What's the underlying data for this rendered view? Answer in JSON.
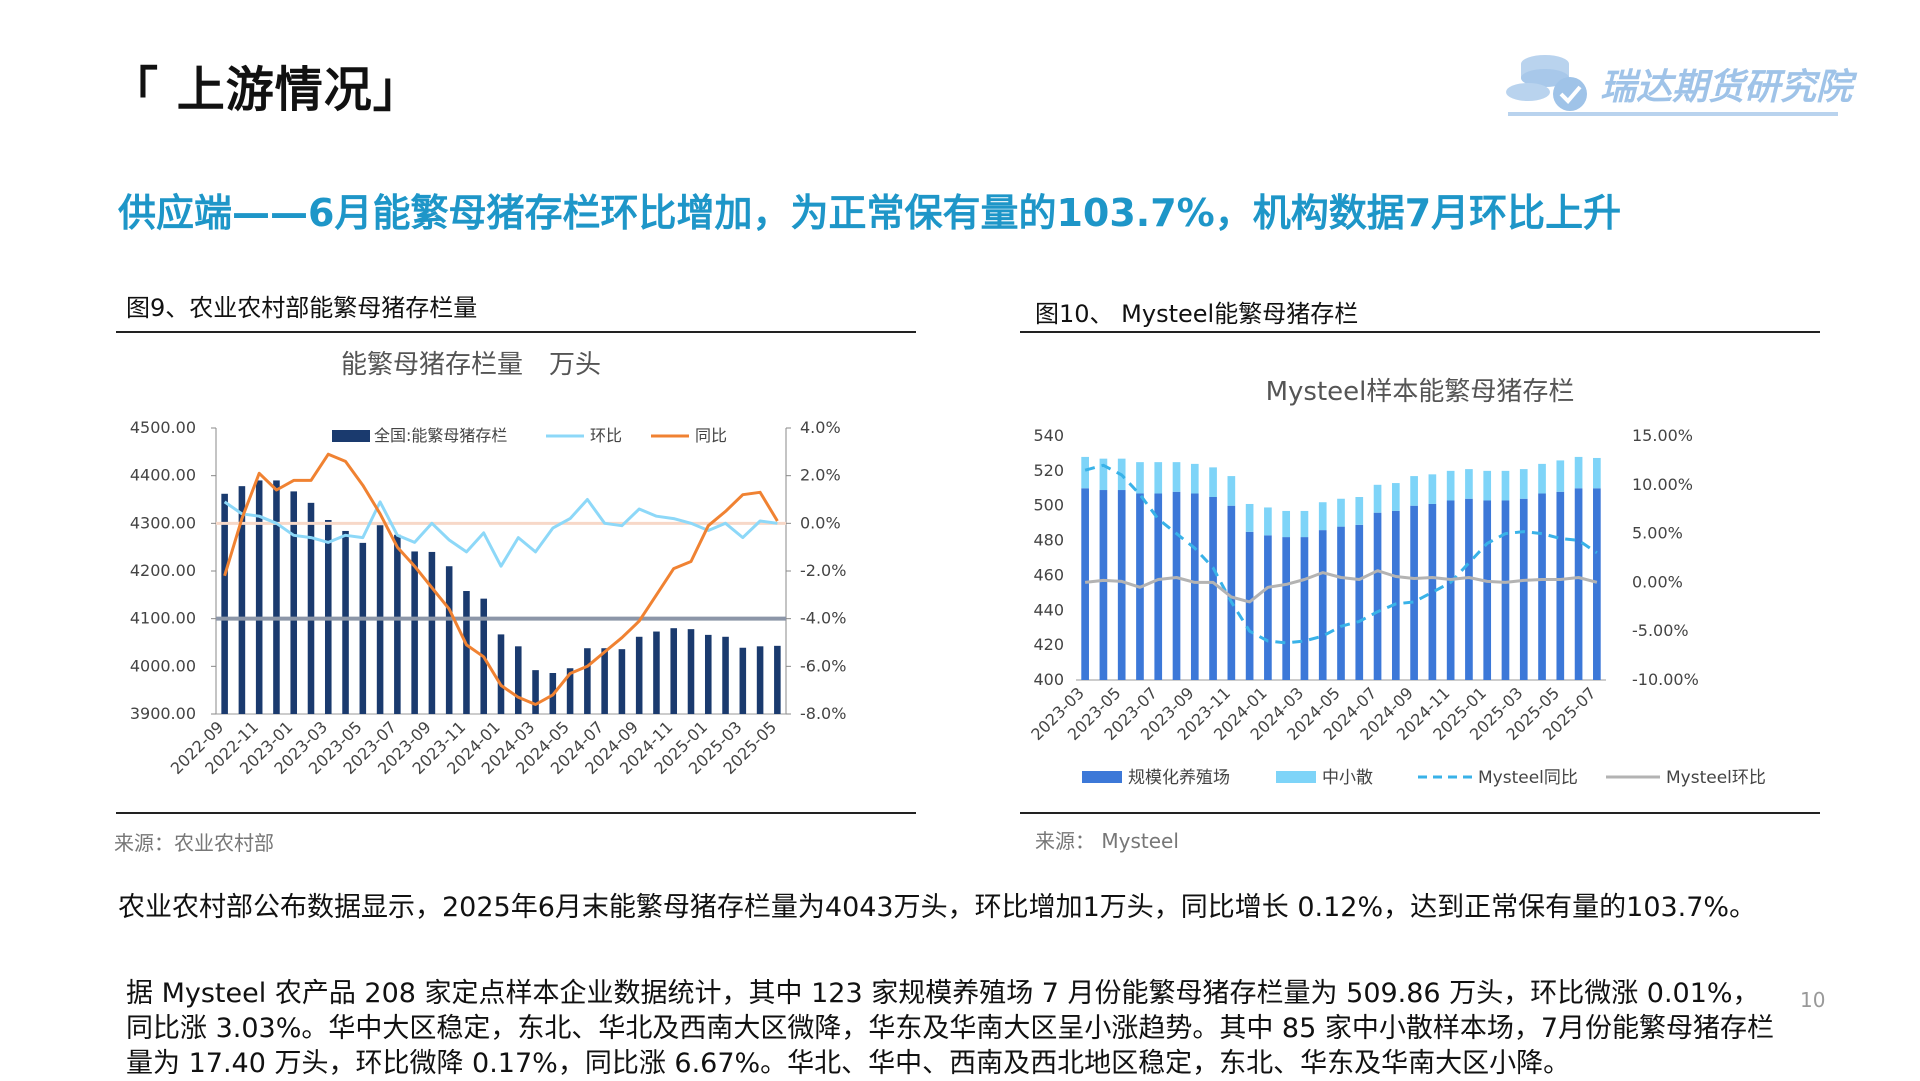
{
  "slide": {
    "section_title": "「 上游情况」",
    "logo_text": "瑞达期货研究院",
    "headline": "供应端——6月能繁母猪存栏环比增加，为正常保有量的103.7%，机构数据7月环比上升",
    "page_number": "10",
    "colors": {
      "headline": "#1e96c8",
      "logo": "#9fc3e8"
    }
  },
  "figures": [
    {
      "caption": "图9、农业农村部能繁母猪存栏量",
      "source": "来源：农业农村部"
    },
    {
      "caption": "图10、 Mysteel能繁母猪存栏",
      "source": "来源： Mysteel"
    }
  ],
  "paragraphs": [
    "农业农村部公布数据显示，2025年6月末能繁母猪存栏量为4043万头，环比增加1万头，同比增长 0.12%，达到正常保有量的103.7%。",
    "据 Mysteel 农产品 208 家定点样本企业数据统计，其中 123 家规模养殖场 7 月份能繁母猪存栏量为 509.86 万头，环比微涨 0.01%，同比涨 3.03%。华中大区稳定，东北、华北及西南大区微降，华东及华南大区呈小涨趋势。其中 85 家中小散样本场，7月份能繁母猪存栏量为 17.40 万头，环比微降 0.17%，同比涨 6.67%。华北、华中、西南及西北地区稳定，东北、华东及华南大区小降。"
  ],
  "chart_data": [
    {
      "type": "bar",
      "title": "能繁母猪存栏量　万头",
      "legend_position": "top",
      "xticks": [
        "2022-09",
        "2022-11",
        "2023-01",
        "2023-03",
        "2023-05",
        "2023-07",
        "2023-09",
        "2023-11",
        "2024-01",
        "2024-03",
        "2024-05",
        "2024-07",
        "2024-09",
        "2024-11",
        "2025-01",
        "2025-03",
        "2025-05"
      ],
      "x_start": "2022-09",
      "ylim": [
        3900,
        4500
      ],
      "yticks": [
        "4500.00",
        "4400.00",
        "4300.00",
        "4200.00",
        "4100.00",
        "4000.00",
        "3900.00"
      ],
      "y2lim": [
        -8,
        4
      ],
      "y2ticks": [
        "4.0%",
        "2.0%",
        "0.0%",
        "-2.0%",
        "-4.0%",
        "-6.0%",
        "-8.0%"
      ],
      "series": [
        {
          "name": "全国:能繁母猪存栏",
          "type": "bar",
          "color": "#1a3a6e",
          "axis": "left",
          "values": [
            4362,
            4378,
            4390,
            4390,
            4367,
            4343,
            4307,
            4284,
            4259,
            4296,
            4276,
            4241,
            4240,
            4210,
            4158,
            4142,
            4067,
            4042,
            3992,
            3986,
            3996,
            4038,
            4038,
            4036,
            4062,
            4073,
            4080,
            4078,
            4066,
            4062,
            4039,
            4042,
            4043
          ]
        },
        {
          "name": "环比",
          "type": "line",
          "color": "#8dd8f8",
          "axis": "right",
          "values": [
            0.9,
            0.4,
            0.3,
            0.0,
            -0.5,
            -0.6,
            -0.8,
            -0.5,
            -0.6,
            0.9,
            -0.5,
            -0.8,
            0.0,
            -0.7,
            -1.2,
            -0.4,
            -1.8,
            -0.6,
            -1.2,
            -0.2,
            0.2,
            1.0,
            0.0,
            -0.1,
            0.6,
            0.3,
            0.2,
            0.0,
            -0.3,
            0.0,
            -0.6,
            0.1,
            0.0
          ]
        },
        {
          "name": "同比",
          "type": "line",
          "color": "#f08232",
          "axis": "right",
          "values": [
            -2.2,
            0.2,
            2.1,
            1.4,
            1.8,
            1.8,
            2.9,
            2.6,
            1.6,
            0.4,
            -1.0,
            -1.8,
            -2.7,
            -3.6,
            -5.1,
            -5.6,
            -6.8,
            -7.3,
            -7.6,
            -7.2,
            -6.3,
            -6.0,
            -5.4,
            -4.8,
            -4.1,
            -3.0,
            -1.9,
            -1.6,
            -0.1,
            0.5,
            1.2,
            1.3,
            0.1
          ]
        }
      ],
      "reference_lines": [
        {
          "axis": "left",
          "value": 4100,
          "color": "#8c96a8"
        },
        {
          "axis": "right",
          "value": 0,
          "color": "#f7d8c8"
        }
      ]
    },
    {
      "type": "bar",
      "title": "Mysteel样本能繁母猪存栏",
      "legend_position": "bottom",
      "xticks": [
        "2023-03",
        "2023-05",
        "2023-07",
        "2023-09",
        "2023-11",
        "2024-01",
        "2024-03",
        "2024-05",
        "2024-07",
        "2024-09",
        "2024-11",
        "2025-01",
        "2025-03",
        "2025-05",
        "2025-07"
      ],
      "x_start": "2023-03",
      "ylim": [
        400,
        540
      ],
      "yticks": [
        "540",
        "520",
        "500",
        "480",
        "460",
        "440",
        "420",
        "400"
      ],
      "y2lim": [
        -10,
        15
      ],
      "y2ticks": [
        "15.00%",
        "10.00%",
        "5.00%",
        "0.00%",
        "-5.00%",
        "-10.00%"
      ],
      "series": [
        {
          "name": "规模化养殖场",
          "type": "bar",
          "stack": "a",
          "color": "#3c78d8",
          "axis": "left",
          "values": [
            510,
            509,
            509,
            507,
            507,
            508,
            507,
            505,
            500,
            485,
            483,
            482,
            482,
            486,
            488,
            489,
            496,
            497,
            500,
            501,
            503,
            504,
            503,
            503,
            504,
            507,
            508,
            510,
            510
          ]
        },
        {
          "name": "中小散",
          "type": "bar",
          "stack": "a",
          "color": "#7ed4f8",
          "axis": "left",
          "values": [
            18,
            18,
            18,
            18,
            18,
            17,
            17,
            17,
            17,
            16,
            16,
            15,
            15,
            16,
            16,
            16,
            16,
            16,
            17,
            17,
            17,
            17,
            17,
            17,
            17,
            17,
            18,
            18,
            17.4
          ]
        },
        {
          "name": "Mysteel同比",
          "type": "line",
          "style": "dashed",
          "color": "#39b2e8",
          "axis": "right",
          "values": [
            11.5,
            12.0,
            11.0,
            9.0,
            6.5,
            5.0,
            3.5,
            1.5,
            -2.0,
            -5.0,
            -6.0,
            -6.2,
            -6.0,
            -5.5,
            -4.5,
            -4.0,
            -3.0,
            -2.2,
            -2.0,
            -1.0,
            0.0,
            2.0,
            4.0,
            5.0,
            5.2,
            5.0,
            4.5,
            4.3,
            3.03
          ]
        },
        {
          "name": "Mysteel环比",
          "type": "line",
          "color": "#b3b3b3",
          "axis": "right",
          "values": [
            0.0,
            0.2,
            0.1,
            -0.5,
            0.3,
            0.5,
            0.0,
            0.0,
            -1.5,
            -2.0,
            -0.5,
            -0.2,
            0.3,
            1.0,
            0.5,
            0.3,
            1.2,
            0.6,
            0.4,
            0.5,
            0.3,
            0.5,
            0.1,
            0.0,
            0.2,
            0.3,
            0.3,
            0.5,
            0.01
          ]
        }
      ]
    }
  ]
}
